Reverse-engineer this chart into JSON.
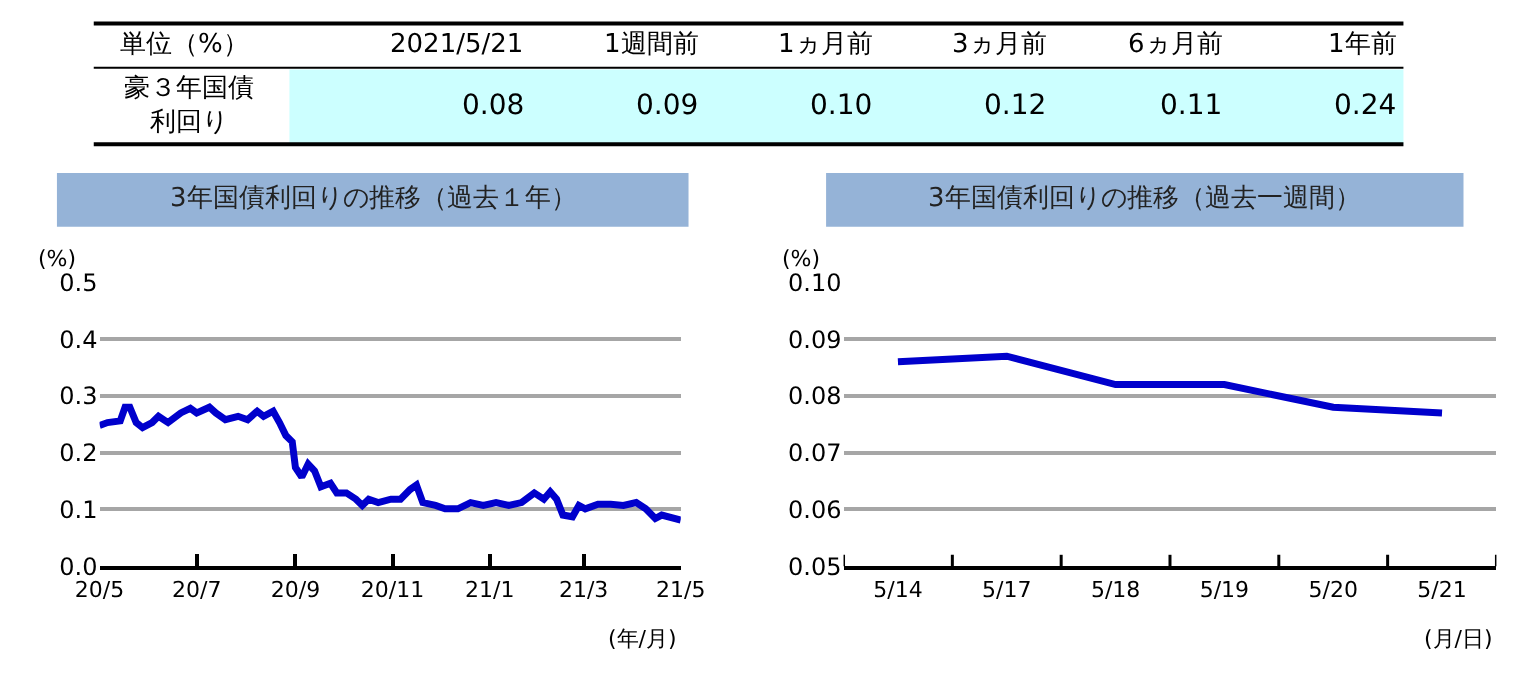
{
  "chart_data": [
    {
      "type": "other",
      "title": "単位（%）",
      "ylabel": "豪３年国債利回り",
      "categories": [
        "2021/5/21",
        "1週間前",
        "1ヵ月前",
        "3ヵ月前",
        "6ヵ月前",
        "1年前"
      ],
      "values": [
        0.08,
        0.09,
        0.1,
        0.12,
        0.11,
        0.24
      ],
      "value_labels": [
        "0.08",
        "0.09",
        "0.10",
        "0.12",
        "0.11",
        "0.24"
      ]
    },
    {
      "type": "line",
      "title": "3年国債利回りの推移（過去１年）",
      "ylabel": "(%)",
      "xlabel": "(年/月)",
      "grid": "y",
      "marker": "none",
      "line_style": "solid",
      "x": [
        "2020-05-21",
        "2020-05-26",
        "2020-06-03",
        "2020-06-06",
        "2020-06-09",
        "2020-06-13",
        "2020-06-17",
        "2020-06-23",
        "2020-06-27",
        "2020-07-03",
        "2020-07-11",
        "2020-07-17",
        "2020-07-21",
        "2020-07-29",
        "2020-08-02",
        "2020-08-08",
        "2020-08-16",
        "2020-08-22",
        "2020-08-28",
        "2020-09-01",
        "2020-09-07",
        "2020-09-11",
        "2020-09-15",
        "2020-09-19",
        "2020-09-21",
        "2020-09-25",
        "2020-09-29",
        "2020-10-03",
        "2020-10-07",
        "2020-10-13",
        "2020-10-17",
        "2020-10-23",
        "2020-10-29",
        "2020-11-02",
        "2020-11-06",
        "2020-11-12",
        "2020-11-20",
        "2020-11-26",
        "2020-12-02",
        "2020-12-06",
        "2020-12-10",
        "2020-12-18",
        "2020-12-24",
        "2021-01-01",
        "2021-01-09",
        "2021-01-17",
        "2021-01-25",
        "2021-02-02",
        "2021-02-10",
        "2021-02-18",
        "2021-02-24",
        "2021-02-28",
        "2021-03-04",
        "2021-03-08",
        "2021-03-14",
        "2021-03-18",
        "2021-03-22",
        "2021-03-30",
        "2021-04-07",
        "2021-04-15",
        "2021-04-23",
        "2021-04-29",
        "2021-05-05",
        "2021-05-09",
        "2021-05-21"
      ],
      "series": [
        {
          "color": "#0000cc",
          "values": [
            0.248,
            0.253,
            0.256,
            0.28,
            0.28,
            0.253,
            0.244,
            0.253,
            0.264,
            0.253,
            0.27,
            0.278,
            0.27,
            0.28,
            0.27,
            0.258,
            0.264,
            0.258,
            0.273,
            0.264,
            0.273,
            0.253,
            0.23,
            0.219,
            0.174,
            0.157,
            0.18,
            0.168,
            0.14,
            0.146,
            0.129,
            0.129,
            0.118,
            0.107,
            0.118,
            0.112,
            0.118,
            0.118,
            0.135,
            0.143,
            0.112,
            0.107,
            0.101,
            0.101,
            0.112,
            0.107,
            0.112,
            0.107,
            0.112,
            0.129,
            0.118,
            0.131,
            0.118,
            0.09,
            0.087,
            0.107,
            0.101,
            0.109,
            0.109,
            0.107,
            0.112,
            0.101,
            0.084,
            0.09,
            0.081
          ]
        }
      ],
      "xlim": [
        "2020-05-21",
        "2021-05-21"
      ],
      "xticks": [
        {
          "value": "2020-05-21",
          "label": "20/5"
        },
        {
          "value": "2020-07-21",
          "label": "20/7"
        },
        {
          "value": "2020-09-21",
          "label": "20/9"
        },
        {
          "value": "2020-11-21",
          "label": "20/11"
        },
        {
          "value": "2021-01-21",
          "label": "21/1"
        },
        {
          "value": "2021-03-21",
          "label": "21/3"
        },
        {
          "value": "2021-05-21",
          "label": "21/5"
        }
      ],
      "ylim": [
        0,
        0.5
      ],
      "yticks": [
        {
          "value": 0,
          "label": "0.0"
        },
        {
          "value": 0.1,
          "label": "0.1"
        },
        {
          "value": 0.2,
          "label": "0.2"
        },
        {
          "value": 0.3,
          "label": "0.3"
        },
        {
          "value": 0.4,
          "label": "0.4"
        },
        {
          "value": 0.5,
          "label": "0.5"
        }
      ]
    },
    {
      "type": "line",
      "title": "3年国債利回りの推移（過去一週間）",
      "ylabel": "(%)",
      "xlabel": "(月/日)",
      "grid": "y",
      "marker": "none",
      "line_style": "solid",
      "categories": [
        "5/14",
        "5/17",
        "5/18",
        "5/19",
        "5/20",
        "5/21"
      ],
      "series": [
        {
          "color": "#0000cc",
          "values": [
            0.086,
            0.087,
            0.082,
            0.082,
            0.078,
            0.077
          ]
        }
      ],
      "ylim": [
        0.05,
        0.1
      ],
      "yticks": [
        {
          "value": 0.05,
          "label": "0.05"
        },
        {
          "value": 0.06,
          "label": "0.06"
        },
        {
          "value": 0.07,
          "label": "0.07"
        },
        {
          "value": 0.08,
          "label": "0.08"
        },
        {
          "value": 0.09,
          "label": "0.09"
        },
        {
          "value": 0.1,
          "label": "0.10"
        }
      ]
    }
  ]
}
